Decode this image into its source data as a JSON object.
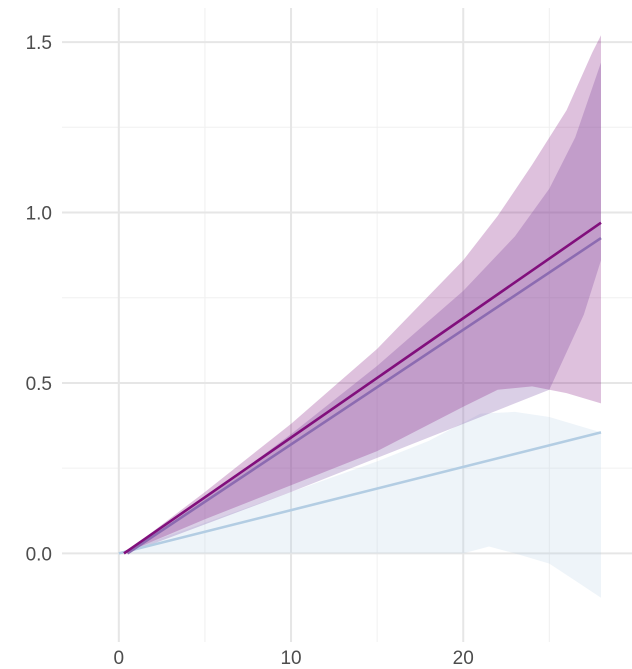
{
  "chart_data": {
    "type": "line",
    "title": "",
    "xlabel": "",
    "ylabel": "",
    "xlim": [
      -3.3,
      29.8
    ],
    "ylim": [
      -0.26,
      1.6
    ],
    "x_ticks": [
      0,
      10,
      20
    ],
    "y_ticks": [
      0.0,
      0.5,
      1.0,
      1.5
    ],
    "x_tick_labels": [
      "0",
      "10",
      "20"
    ],
    "y_tick_labels": [
      "0.0",
      "0.5",
      "1.0",
      "1.5"
    ],
    "x_minor": [
      5,
      15,
      25
    ],
    "y_minor": [
      0.25,
      0.75,
      1.25
    ],
    "grid": true,
    "legend": "none",
    "series": [
      {
        "color": "#b3cde3",
        "line": [
          [
            0,
            0
          ],
          [
            28,
            0.355
          ]
        ],
        "band_alpha": 0.22,
        "band_upper": [
          [
            0,
            0
          ],
          [
            5,
            0.09
          ],
          [
            10,
            0.18
          ],
          [
            15,
            0.27
          ],
          [
            18,
            0.33
          ],
          [
            21,
            0.41
          ],
          [
            23,
            0.415
          ],
          [
            25,
            0.4
          ],
          [
            27,
            0.37
          ],
          [
            28,
            0.355
          ]
        ],
        "band_lower": [
          [
            0,
            0
          ],
          [
            5,
            0.0
          ],
          [
            10,
            0.0
          ],
          [
            15,
            0.0
          ],
          [
            20,
            0.0
          ],
          [
            21.5,
            0.02
          ],
          [
            23,
            0.0
          ],
          [
            25,
            -0.03
          ],
          [
            26.5,
            -0.08
          ],
          [
            28,
            -0.13
          ]
        ]
      },
      {
        "color": "#8c6bb1",
        "line": [
          [
            0.5,
            0
          ],
          [
            28,
            0.925
          ]
        ],
        "band_alpha": 0.32,
        "band_upper": [
          [
            0.5,
            0
          ],
          [
            5,
            0.16
          ],
          [
            10,
            0.35
          ],
          [
            15,
            0.55
          ],
          [
            20,
            0.77
          ],
          [
            23,
            0.93
          ],
          [
            25,
            1.07
          ],
          [
            26.5,
            1.22
          ],
          [
            28,
            1.44
          ]
        ],
        "band_lower": [
          [
            0.5,
            0
          ],
          [
            5,
            0.085
          ],
          [
            10,
            0.18
          ],
          [
            15,
            0.28
          ],
          [
            20,
            0.38
          ],
          [
            23,
            0.44
          ],
          [
            25,
            0.48
          ],
          [
            27,
            0.7
          ],
          [
            28,
            0.86
          ]
        ]
      },
      {
        "color": "#810f7c",
        "line": [
          [
            0.3,
            0
          ],
          [
            28,
            0.97
          ]
        ],
        "band_alpha": 0.26,
        "band_upper": [
          [
            0.3,
            0
          ],
          [
            5,
            0.18
          ],
          [
            10,
            0.38
          ],
          [
            15,
            0.6
          ],
          [
            20,
            0.86
          ],
          [
            22,
            0.99
          ],
          [
            24,
            1.14
          ],
          [
            26,
            1.3
          ],
          [
            27.5,
            1.47
          ],
          [
            28,
            1.52
          ]
        ],
        "band_lower": [
          [
            0.3,
            0
          ],
          [
            5,
            0.1
          ],
          [
            10,
            0.2
          ],
          [
            15,
            0.3
          ],
          [
            20,
            0.43
          ],
          [
            22,
            0.48
          ],
          [
            24,
            0.49
          ],
          [
            26,
            0.47
          ],
          [
            28,
            0.44
          ]
        ]
      }
    ]
  }
}
